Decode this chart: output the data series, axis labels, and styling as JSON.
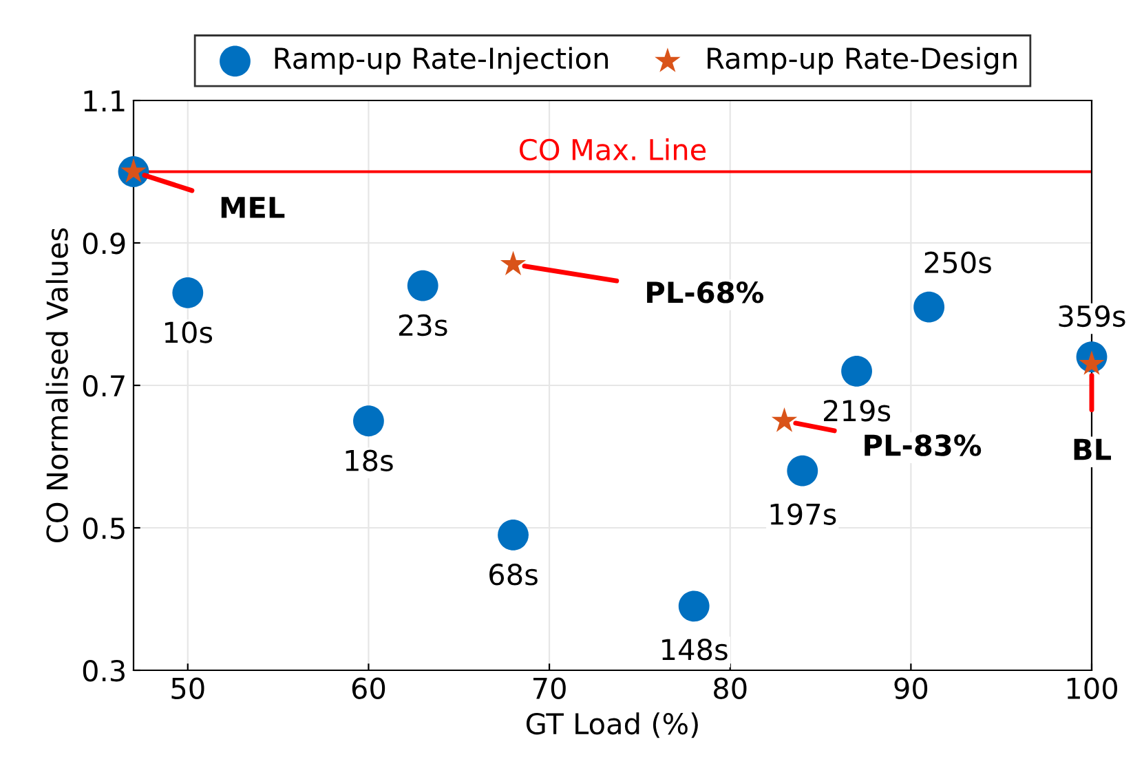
{
  "chart_data": {
    "type": "scatter",
    "xlabel": "GT Load (%)",
    "ylabel": "CO Normalised Values",
    "xlim": [
      47,
      100
    ],
    "xticks": [
      50,
      60,
      70,
      80,
      90,
      100
    ],
    "ylim": [
      0.3,
      1.1
    ],
    "yticks": [
      0.3,
      0.5,
      0.7,
      0.9,
      1.1
    ],
    "grid": true,
    "legend": "top",
    "series": [
      {
        "name": "Ramp-up Rate-Injection",
        "color": "#0070c0",
        "marker": "circle",
        "x": [
          47,
          50,
          60,
          63,
          68,
          78,
          84,
          87,
          91,
          100
        ],
        "values": [
          1.0,
          0.83,
          0.65,
          0.84,
          0.49,
          0.39,
          0.58,
          0.72,
          0.81,
          0.74
        ]
      },
      {
        "name": "Ramp-up Rate-Design",
        "color": "#d95319",
        "marker": "star",
        "x": [
          47,
          68,
          83,
          100
        ],
        "values": [
          1.0,
          0.87,
          0.65,
          0.73
        ]
      }
    ],
    "ref_lines": [
      {
        "axis": "y",
        "value": 1.0,
        "label": "CO Max. Line",
        "color": "#ff0000"
      }
    ],
    "annotations": [
      {
        "text": "10s",
        "x": 50,
        "y": 0.83
      },
      {
        "text": "18s",
        "x": 60,
        "y": 0.65
      },
      {
        "text": "23s",
        "x": 63,
        "y": 0.84
      },
      {
        "text": "68s",
        "x": 68,
        "y": 0.49
      },
      {
        "text": "148s",
        "x": 78,
        "y": 0.39
      },
      {
        "text": "197s",
        "x": 84,
        "y": 0.58
      },
      {
        "text": "219s",
        "x": 87,
        "y": 0.72
      },
      {
        "text": "250s",
        "x": 91,
        "y": 0.81
      },
      {
        "text": "359s",
        "x": 100,
        "y": 0.74
      },
      {
        "text": "MEL",
        "x": 47,
        "y": 1.0
      },
      {
        "text": "PL-68%",
        "x": 68,
        "y": 0.87
      },
      {
        "text": "PL-83%",
        "x": 83,
        "y": 0.65
      },
      {
        "text": "BL",
        "x": 100,
        "y": 0.73
      }
    ]
  }
}
